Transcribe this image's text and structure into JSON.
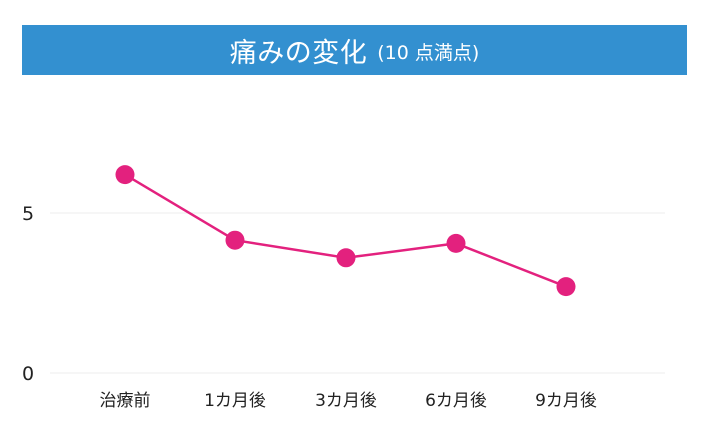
{
  "chart_data": {
    "type": "line",
    "title": "痛みの変化",
    "subtitle": "(10 点満点)",
    "categories": [
      "治療前",
      "1カ月後",
      "3カ月後",
      "6カ月後",
      "9カ月後"
    ],
    "values": [
      6.2,
      4.15,
      3.6,
      4.05,
      2.7
    ],
    "yticks": [
      0,
      5
    ],
    "ylim": [
      0,
      10
    ],
    "grid": true,
    "colors": {
      "title_bar": "#3390d0",
      "line": "#e3217e",
      "grid": "#eeeeee"
    }
  }
}
